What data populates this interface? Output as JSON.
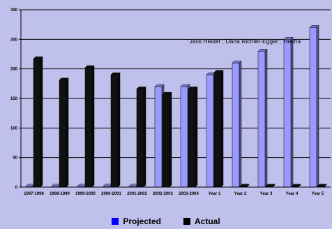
{
  "chart_data": {
    "type": "bar",
    "categories": [
      "1997-1998",
      "1998-1999",
      "1999-2000",
      "2000-2001",
      "2001-2002",
      "2002-2003",
      "2003-2004",
      "Year 1",
      "Year 2",
      "Year 3",
      "Year 4",
      "Year 5"
    ],
    "series": [
      {
        "name": "Projected",
        "color": "#9999ff",
        "legend_color": "#0000ff",
        "values": [
          0,
          0,
          0,
          0,
          0,
          170,
          170,
          190,
          210,
          230,
          250,
          270
        ]
      },
      {
        "name": "Actual",
        "color": "#111111",
        "legend_color": "#000000",
        "values": [
          217,
          181,
          202,
          190,
          166,
          157,
          166,
          194,
          0,
          0,
          0,
          0
        ]
      }
    ],
    "yticks": [
      0,
      50,
      100,
      150,
      200,
      250,
      300
    ],
    "ylim": [
      0,
      300
    ],
    "grid": true,
    "legend_position": "bottom",
    "annotation": "'Jack Heidel'; 'Dana Richter-Egger'; 'Hesha",
    "title": "",
    "xlabel": "",
    "ylabel": ""
  }
}
